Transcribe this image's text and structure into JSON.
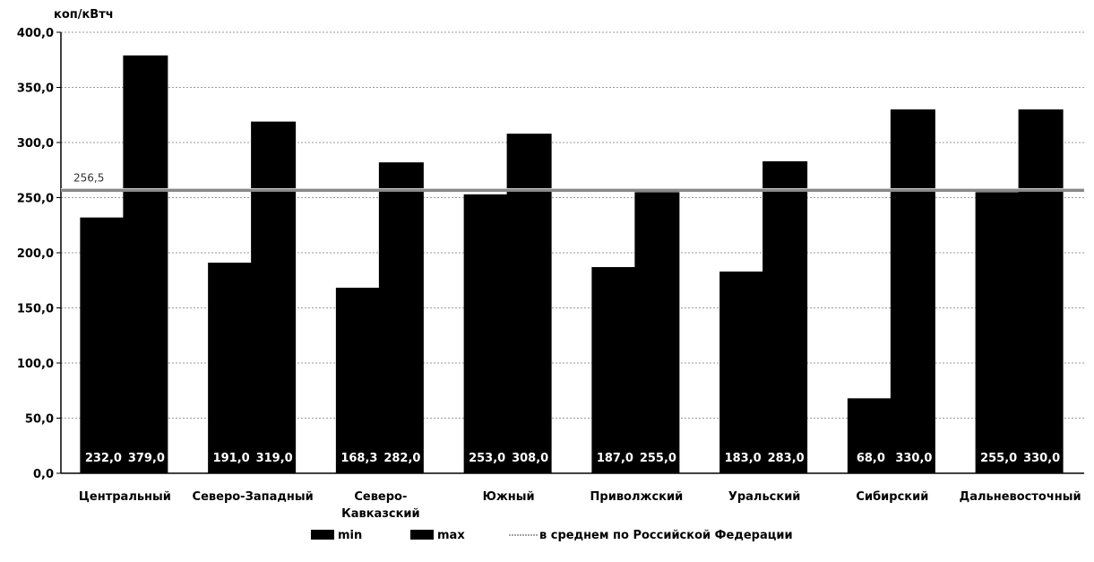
{
  "chart_data": {
    "type": "bar",
    "ylabel": "коп/кВтч",
    "ylim": [
      0,
      400
    ],
    "ytick_step": 50,
    "ytick_labels": [
      "0,0",
      "50,0",
      "100,0",
      "150,0",
      "200,0",
      "250,0",
      "300,0",
      "350,0",
      "400,0"
    ],
    "grid": true,
    "legend_position": "bottom",
    "categories": [
      [
        "Центральный"
      ],
      [
        "Северо-Западный"
      ],
      [
        "Северо-",
        "Кавказский"
      ],
      [
        "Южный"
      ],
      [
        "Приволжский"
      ],
      [
        "Уральский"
      ],
      [
        "Сибирский"
      ],
      [
        "Дальневосточный"
      ]
    ],
    "series": [
      {
        "name": "min",
        "values": [
          232.0,
          191.0,
          168.3,
          253.0,
          187.0,
          183.0,
          68.0,
          255.0
        ],
        "value_labels": [
          "232,0",
          "191,0",
          "168,3",
          "253,0",
          "187,0",
          "183,0",
          "68,0",
          "255,0"
        ],
        "color": "#000000"
      },
      {
        "name": "max",
        "values": [
          379.0,
          319.0,
          282.0,
          308.0,
          255.0,
          283.0,
          330.0,
          330.0
        ],
        "value_labels": [
          "379,0",
          "319,0",
          "282,0",
          "308,0",
          "255,0",
          "283,0",
          "330,0",
          "330,0"
        ],
        "color": "#000000"
      }
    ],
    "reference_line": {
      "name": "в среднем по Российской Федерации",
      "value": 256.5,
      "label": "256,5",
      "color": "#888888"
    }
  }
}
